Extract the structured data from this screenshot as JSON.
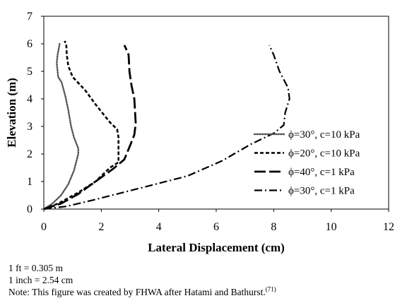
{
  "chart_data": {
    "type": "line",
    "title": "",
    "xlabel": "Lateral Displacement (cm)",
    "ylabel": "Elevation (m)",
    "xlim": [
      0,
      12
    ],
    "ylim": [
      0,
      7
    ],
    "xticks": [
      0,
      2,
      4,
      6,
      8,
      10,
      12
    ],
    "yticks": [
      0,
      1,
      2,
      3,
      4,
      5,
      6,
      7
    ],
    "grid": false,
    "legend_position": "right",
    "series": [
      {
        "name": "ϕ=30°, c=10 kPa",
        "style": "dotted",
        "color": "#555555",
        "points": [
          [
            0,
            0
          ],
          [
            0.3,
            0.2
          ],
          [
            0.6,
            0.5
          ],
          [
            0.85,
            0.9
          ],
          [
            1.05,
            1.4
          ],
          [
            1.2,
            2.0
          ],
          [
            1.2,
            2.2
          ],
          [
            1.05,
            2.6
          ],
          [
            0.95,
            3.0
          ],
          [
            0.85,
            3.6
          ],
          [
            0.75,
            4.1
          ],
          [
            0.62,
            4.6
          ],
          [
            0.5,
            4.8
          ],
          [
            0.45,
            5.3
          ],
          [
            0.48,
            5.6
          ],
          [
            0.55,
            6.0
          ]
        ]
      },
      {
        "name": "ϕ=20°, c=10 kPa",
        "style": "short-dash",
        "color": "#000000",
        "points": [
          [
            0,
            0
          ],
          [
            0.5,
            0.2
          ],
          [
            1.2,
            0.6
          ],
          [
            1.8,
            1.0
          ],
          [
            2.3,
            1.5
          ],
          [
            2.6,
            1.7
          ],
          [
            2.6,
            2.6
          ],
          [
            2.55,
            2.9
          ],
          [
            2.3,
            3.15
          ],
          [
            1.8,
            3.8
          ],
          [
            1.45,
            4.3
          ],
          [
            1.0,
            4.8
          ],
          [
            0.85,
            5.2
          ],
          [
            0.8,
            5.6
          ],
          [
            0.78,
            6.0
          ],
          [
            0.72,
            6.1
          ]
        ]
      },
      {
        "name": "ϕ=40°, c=1 kPa",
        "style": "long-dash",
        "color": "#000000",
        "points": [
          [
            0,
            0
          ],
          [
            0.6,
            0.2
          ],
          [
            1.2,
            0.55
          ],
          [
            1.8,
            1.0
          ],
          [
            2.4,
            1.45
          ],
          [
            2.8,
            1.8
          ],
          [
            3.0,
            2.3
          ],
          [
            3.15,
            2.7
          ],
          [
            3.2,
            3.1
          ],
          [
            3.15,
            4.0
          ],
          [
            3.05,
            4.5
          ],
          [
            2.98,
            5.0
          ],
          [
            2.95,
            5.6
          ],
          [
            2.85,
            5.85
          ],
          [
            2.8,
            5.95
          ]
        ]
      },
      {
        "name": "ϕ=30°, c=1 kPa",
        "style": "dash-dot",
        "color": "#000000",
        "points": [
          [
            0,
            0
          ],
          [
            0.8,
            0.1
          ],
          [
            1.8,
            0.35
          ],
          [
            3.5,
            0.8
          ],
          [
            5.0,
            1.2
          ],
          [
            6.2,
            1.75
          ],
          [
            7.2,
            2.35
          ],
          [
            8.0,
            2.75
          ],
          [
            8.35,
            3.05
          ],
          [
            8.4,
            3.5
          ],
          [
            8.55,
            4.0
          ],
          [
            8.5,
            4.4
          ],
          [
            8.2,
            5.0
          ],
          [
            8.0,
            5.6
          ],
          [
            7.85,
            5.95
          ]
        ]
      }
    ]
  },
  "notes": {
    "line1": "1 ft = 0.305 m",
    "line2": "1 inch = 2.54 cm",
    "line3": "Note: This figure was created by FHWA after Hatami and Bathurst.",
    "line3_ref": "(71)"
  }
}
